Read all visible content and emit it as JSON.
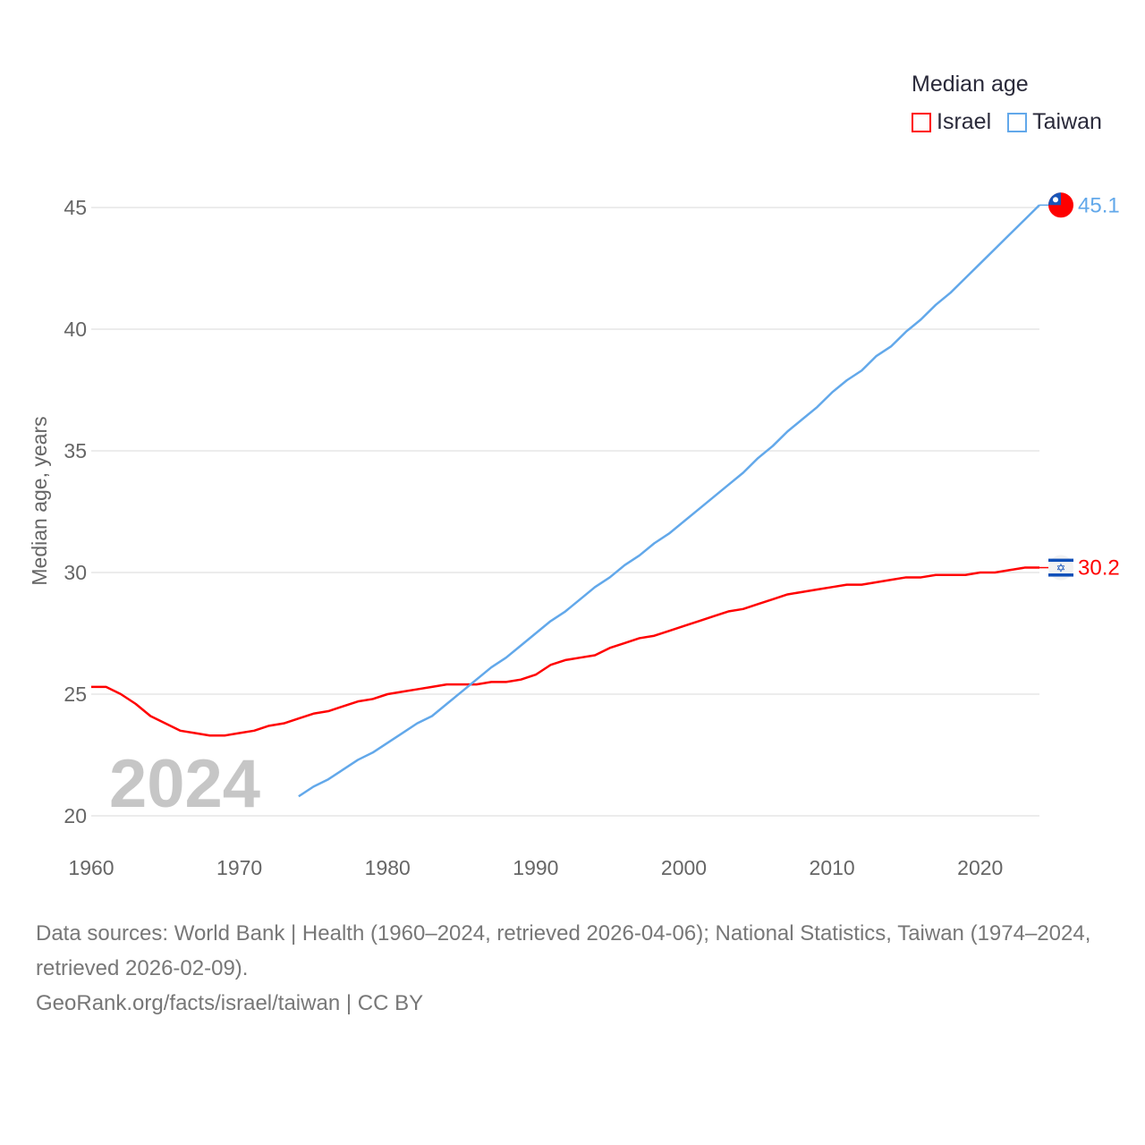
{
  "chart_data": {
    "type": "line",
    "title": "",
    "xlabel": "",
    "ylabel": "Median age, years",
    "xlim": [
      1960,
      2024
    ],
    "ylim": [
      20,
      45
    ],
    "x_ticks": [
      1960,
      1970,
      1980,
      1990,
      2000,
      2010,
      2020
    ],
    "y_ticks": [
      20,
      25,
      30,
      35,
      40,
      45
    ],
    "grid": true,
    "year_watermark": "2024",
    "legend": {
      "title": "Median age",
      "placement": "top-right"
    },
    "series": [
      {
        "name": "Israel",
        "color": "#ff0000",
        "flag": "israel-flag",
        "end_label": "30.2",
        "x_start": 1960,
        "values": [
          25.3,
          25.3,
          25.0,
          24.6,
          24.1,
          23.8,
          23.5,
          23.4,
          23.3,
          23.3,
          23.4,
          23.5,
          23.7,
          23.8,
          24.0,
          24.2,
          24.3,
          24.5,
          24.7,
          24.8,
          25.0,
          25.1,
          25.2,
          25.3,
          25.4,
          25.4,
          25.4,
          25.5,
          25.5,
          25.6,
          25.8,
          26.2,
          26.4,
          26.5,
          26.6,
          26.9,
          27.1,
          27.3,
          27.4,
          27.6,
          27.8,
          28.0,
          28.2,
          28.4,
          28.5,
          28.7,
          28.9,
          29.1,
          29.2,
          29.3,
          29.4,
          29.5,
          29.5,
          29.6,
          29.7,
          29.8,
          29.8,
          29.9,
          29.9,
          29.9,
          30.0,
          30.0,
          30.1,
          30.2,
          30.2
        ]
      },
      {
        "name": "Taiwan",
        "color": "#62a8ea",
        "flag": "taiwan-flag",
        "end_label": "45.1",
        "x_start": 1974,
        "values": [
          20.8,
          21.2,
          21.5,
          21.9,
          22.3,
          22.6,
          23.0,
          23.4,
          23.8,
          24.1,
          24.6,
          25.1,
          25.6,
          26.1,
          26.5,
          27.0,
          27.5,
          28.0,
          28.4,
          28.9,
          29.4,
          29.8,
          30.3,
          30.7,
          31.2,
          31.6,
          32.1,
          32.6,
          33.1,
          33.6,
          34.1,
          34.7,
          35.2,
          35.8,
          36.3,
          36.8,
          37.4,
          37.9,
          38.3,
          38.9,
          39.3,
          39.9,
          40.4,
          41.0,
          41.5,
          42.1,
          42.7,
          43.3,
          43.9,
          44.5,
          45.1
        ]
      }
    ]
  },
  "footer": {
    "sources": "Data sources: World Bank | Health (1960–2024, retrieved 2026-04-06); National Statistics, Taiwan (1974–2024, retrieved 2026-02-09).",
    "credit": "GeoRank.org/facts/israel/taiwan | CC BY"
  }
}
